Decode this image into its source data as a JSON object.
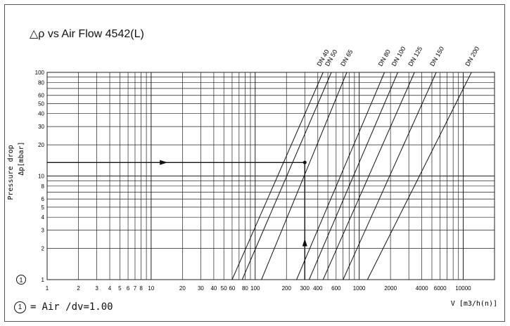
{
  "title": "△ρ vs Air Flow 4542(L)",
  "footnote": {
    "marker": "1",
    "equals": "=",
    "text": "Air /dv=1.00"
  },
  "chart_data": {
    "type": "line",
    "title": "△ρ vs Air Flow 4542(L)",
    "xlabel": "V [m3/h(n)]",
    "ylabel": "Δp[mbar]",
    "ylabel_prefix": "Pressure drop",
    "x_scale": "log",
    "y_scale": "log",
    "xlim": [
      1,
      20000
    ],
    "ylim": [
      1,
      100
    ],
    "grid": true,
    "x_tick_labels": [
      {
        "v": 1,
        "t": "1"
      },
      {
        "v": 2,
        "t": "2"
      },
      {
        "v": 3,
        "t": "3"
      },
      {
        "v": 4,
        "t": "4"
      },
      {
        "v": 5,
        "t": "5"
      },
      {
        "v": 6,
        "t": "6"
      },
      {
        "v": 7,
        "t": "7"
      },
      {
        "v": 8,
        "t": "8"
      },
      {
        "v": 10,
        "t": "10"
      },
      {
        "v": 20,
        "t": "20"
      },
      {
        "v": 30,
        "t": "30"
      },
      {
        "v": 40,
        "t": "40"
      },
      {
        "v": 50,
        "t": "50"
      },
      {
        "v": 60,
        "t": "60"
      },
      {
        "v": 80,
        "t": "80"
      },
      {
        "v": 100,
        "t": "100"
      },
      {
        "v": 200,
        "t": "200"
      },
      {
        "v": 300,
        "t": "300"
      },
      {
        "v": 400,
        "t": "400"
      },
      {
        "v": 600,
        "t": "600"
      },
      {
        "v": 1000,
        "t": "1000"
      },
      {
        "v": 2000,
        "t": "2000"
      },
      {
        "v": 4000,
        "t": "4000"
      },
      {
        "v": 6000,
        "t": "6000"
      },
      {
        "v": 10000,
        "t": "10000"
      }
    ],
    "y_tick_labels": [
      {
        "v": 1,
        "t": "1"
      },
      {
        "v": 2,
        "t": "2"
      },
      {
        "v": 3,
        "t": "3"
      },
      {
        "v": 4,
        "t": "4"
      },
      {
        "v": 5,
        "t": "5"
      },
      {
        "v": 6,
        "t": "6"
      },
      {
        "v": 8,
        "t": "8"
      },
      {
        "v": 10,
        "t": "10"
      },
      {
        "v": 20,
        "t": "20"
      },
      {
        "v": 30,
        "t": "30"
      },
      {
        "v": 40,
        "t": "40"
      },
      {
        "v": 50,
        "t": "50"
      },
      {
        "v": 60,
        "t": "60"
      },
      {
        "v": 80,
        "t": "80"
      },
      {
        "v": 100,
        "t": "100"
      }
    ],
    "series": [
      {
        "name": "DN 40",
        "points": [
          [
            60,
            1
          ],
          [
            450,
            100
          ]
        ]
      },
      {
        "name": "DN 50",
        "points": [
          [
            75,
            1
          ],
          [
            540,
            100
          ]
        ]
      },
      {
        "name": "DN 65",
        "points": [
          [
            115,
            1
          ],
          [
            760,
            100
          ]
        ]
      },
      {
        "name": "DN 80",
        "points": [
          [
            250,
            1
          ],
          [
            1750,
            100
          ]
        ]
      },
      {
        "name": "DN 100",
        "points": [
          [
            330,
            1
          ],
          [
            2350,
            100
          ]
        ]
      },
      {
        "name": "DN 125",
        "points": [
          [
            450,
            1
          ],
          [
            3400,
            100
          ]
        ]
      },
      {
        "name": "DN 150",
        "points": [
          [
            700,
            1
          ],
          [
            5500,
            100
          ]
        ]
      },
      {
        "name": "DN 200",
        "points": [
          [
            1200,
            1
          ],
          [
            12000,
            100
          ]
        ]
      }
    ],
    "example_point": {
      "x": 300,
      "y": 13.5
    },
    "annotations": {
      "curve_marker": "1"
    }
  }
}
